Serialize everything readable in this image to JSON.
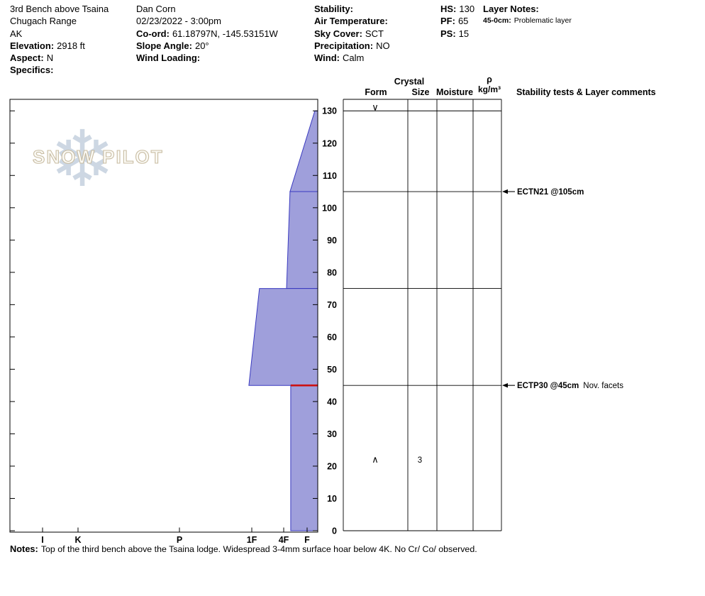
{
  "header": {
    "col1": {
      "location": "3rd Bench above Tsaina",
      "range": "Chugach Range",
      "state": "AK",
      "elevation_label": "Elevation:",
      "elevation_value": "2918 ft",
      "aspect_label": "Aspect:",
      "aspect_value": "N",
      "specifics_label": "Specifics:",
      "specifics_value": ""
    },
    "col2": {
      "observer": "Dan Corn",
      "datetime": "02/23/2022 - 3:00pm",
      "coord_label": "Co-ord:",
      "coord_value": "61.18797N, -145.53151W",
      "slope_label": "Slope Angle:",
      "slope_value": "20°",
      "wind_loading_label": "Wind Loading:",
      "wind_loading_value": ""
    },
    "col3": {
      "stability_label": "Stability:",
      "stability_value": "",
      "air_temp_label": "Air Temperature:",
      "air_temp_value": "",
      "sky_label": "Sky Cover:",
      "sky_value": "SCT",
      "precip_label": "Precipitation:",
      "precip_value": "NO",
      "wind_label": "Wind:",
      "wind_value": "Calm"
    },
    "col4": {
      "hs_label": "HS:",
      "hs_value": "130",
      "pf_label": "PF:",
      "pf_value": "65",
      "ps_label": "PS:",
      "ps_value": "15"
    },
    "col5": {
      "title": "Layer Notes:",
      "items": [
        {
          "range": "45-0cm:",
          "text": "Problematic layer"
        }
      ]
    }
  },
  "watermark": {
    "text": "SNOW PILOT"
  },
  "panel_headers": {
    "crystal": "Crystal",
    "form": "Form",
    "size": "Size",
    "moisture": "Moisture",
    "rho": "ρ",
    "rho_units": "kg/m³",
    "comments": "Stability tests & Layer comments"
  },
  "notes": {
    "label": "Notes:",
    "text": "Top of the third bench above the Tsaina lodge.  Widespread 3-4mm surface hoar below 4K.  No Cr/ Co/ observed."
  },
  "chart_data": {
    "type": "area",
    "title": "Snow pit hand-hardness profile",
    "depth_axis": {
      "unit": "cm",
      "min": 0,
      "max": 133,
      "tick_step": 10,
      "ticks": [
        0,
        10,
        20,
        30,
        40,
        50,
        60,
        70,
        80,
        90,
        100,
        110,
        120,
        130
      ]
    },
    "hardness_axis": {
      "tick_labels": [
        "I",
        "K",
        "P",
        "1F",
        "4F",
        "F"
      ],
      "tick_values": [
        6,
        5,
        4,
        3,
        2,
        1
      ],
      "note": "hand hardness, hardest at left, soft (F) at right"
    },
    "total_snow_depth_cm": 130,
    "fill_color": "#9f9fdb",
    "outline_color": "#3a3ac0",
    "layers": [
      {
        "top_cm": 130,
        "bottom_cm": 105,
        "hardness_top": "F-",
        "hardness_bottom": "4F",
        "h_top": 0.67,
        "h_bot": 1.73
      },
      {
        "top_cm": 105,
        "bottom_cm": 75,
        "hardness_top": "4F",
        "hardness_bottom": "4F",
        "h_top": 1.73,
        "h_bot": 1.88
      },
      {
        "top_cm": 75,
        "bottom_cm": 45,
        "hardness_top": "1F",
        "hardness_bottom": "1F",
        "h_top": 2.76,
        "h_bot": 3.04
      },
      {
        "top_cm": 45,
        "bottom_cm": 0,
        "hardness_top": "4F",
        "hardness_bottom": "4F",
        "h_top": 1.7,
        "h_bot": 1.7
      }
    ],
    "problem_layer": {
      "depth_cm": 45,
      "color": "#cc1111"
    },
    "layer_boundaries_cm": [
      130,
      105,
      75,
      45,
      0
    ],
    "grain_annotations": [
      {
        "depth_cm": 131,
        "form_symbol": "∨",
        "size_mm": ""
      },
      {
        "depth_cm": 22,
        "form_symbol": "∧",
        "size_mm": "3"
      }
    ],
    "stability_tests": [
      {
        "depth_cm": 105,
        "name": "ECTN21 @105cm",
        "comment": ""
      },
      {
        "depth_cm": 45,
        "name": "ECTP30 @45cm",
        "comment": "Nov. facets"
      }
    ]
  }
}
